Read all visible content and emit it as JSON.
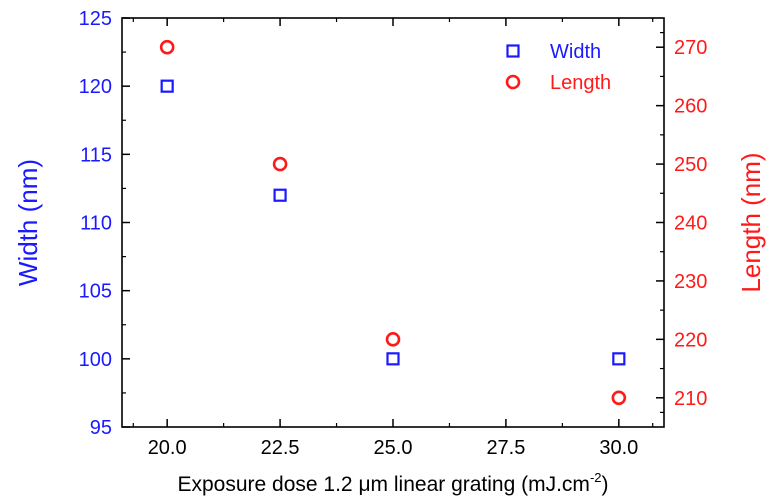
{
  "chart_data": {
    "type": "scatter",
    "x": [
      20.0,
      22.5,
      25.0,
      30.0
    ],
    "x_ticks": [
      "20.0",
      "22.5",
      "25.0",
      "27.5",
      "30.0"
    ],
    "xlim": [
      19.0,
      31.0
    ],
    "xlabel": {
      "prefix": "Exposure dose 1.2 ",
      "mu": "μ",
      "suffix": "m linear grating (mJ.cm",
      "sup": "-2",
      "close": ")"
    },
    "y_left": {
      "label": "Width (nm)",
      "ylim": [
        95,
        125
      ],
      "ticks": [
        "95",
        "100",
        "105",
        "110",
        "115",
        "120",
        "125"
      ],
      "color": "#1a1aff"
    },
    "y_right": {
      "label": "Length (nm)",
      "ylim": [
        205,
        275
      ],
      "ticks": [
        "210",
        "220",
        "230",
        "240",
        "250",
        "260",
        "270"
      ],
      "color": "#ff1a1a"
    },
    "series": [
      {
        "name": "Width",
        "axis": "left",
        "marker": "square",
        "color": "#1a1aff",
        "values": [
          120,
          112,
          100,
          100
        ]
      },
      {
        "name": "Length",
        "axis": "right",
        "marker": "circle",
        "color": "#ff1a1a",
        "values": [
          270,
          250,
          220,
          210
        ]
      }
    ],
    "legend_position": "top-right",
    "grid": false
  }
}
